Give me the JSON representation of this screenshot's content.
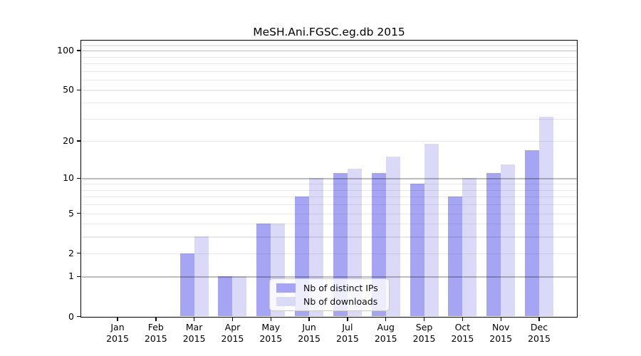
{
  "chart_data": {
    "type": "bar",
    "title": "MeSH.Ani.FGSC.eg.db 2015",
    "categories": [
      {
        "month": "Jan",
        "year": "2015"
      },
      {
        "month": "Feb",
        "year": "2015"
      },
      {
        "month": "Mar",
        "year": "2015"
      },
      {
        "month": "Apr",
        "year": "2015"
      },
      {
        "month": "May",
        "year": "2015"
      },
      {
        "month": "Jun",
        "year": "2015"
      },
      {
        "month": "Jul",
        "year": "2015"
      },
      {
        "month": "Aug",
        "year": "2015"
      },
      {
        "month": "Sep",
        "year": "2015"
      },
      {
        "month": "Oct",
        "year": "2015"
      },
      {
        "month": "Nov",
        "year": "2015"
      },
      {
        "month": "Dec",
        "year": "2015"
      }
    ],
    "series": [
      {
        "name": "Nb of distinct IPs",
        "color": "#a5a5f3",
        "values": [
          0,
          0,
          2,
          1,
          4,
          7,
          11,
          11,
          9,
          7,
          11,
          17
        ]
      },
      {
        "name": "Nb of downloads",
        "color": "#dadaf8",
        "values": [
          0,
          0,
          3,
          1,
          4,
          10,
          12,
          15,
          19,
          10,
          13,
          31
        ]
      }
    ],
    "y_axis": {
      "scale": "log10(value+1)",
      "tick_labels": [
        "0",
        "1",
        "2",
        "5",
        "10",
        "20",
        "50",
        "100"
      ],
      "tick_values": [
        0,
        1,
        2,
        5,
        10,
        20,
        50,
        100
      ],
      "gridlines_major": [
        1,
        10,
        100
      ],
      "gridlines_minor": [
        2,
        3,
        4,
        5,
        6,
        7,
        8,
        9,
        20,
        30,
        40,
        50,
        60,
        70,
        80,
        90,
        110
      ],
      "ylim": [
        0,
        117
      ]
    },
    "grid": true,
    "legend_position": "inside-bottom-center"
  },
  "colors": {
    "series_dark": "#a5a5f3",
    "series_light": "#dadaf8",
    "axis": "#000000",
    "grid_major": "rgba(0,0,0,0.26)",
    "grid_minor": "rgba(0,0,0,0.085)"
  }
}
